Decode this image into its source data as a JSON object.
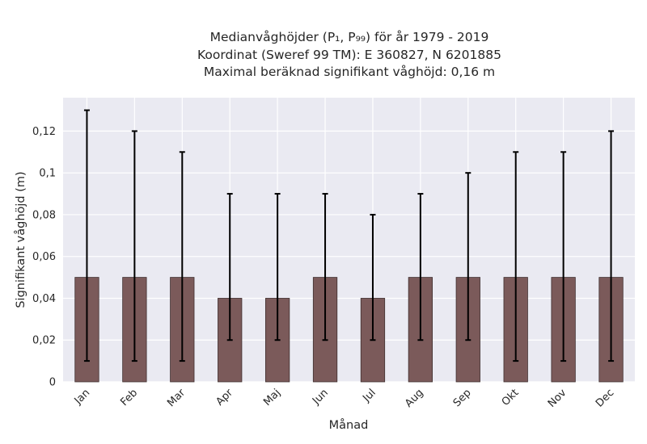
{
  "chart_data": {
    "type": "bar",
    "title_lines": [
      "Medianvåghöjder (P₁, P₉₉) för år 1979 - 2019",
      "Koordinat (Sweref 99 TM): E 360827, N 6201885",
      "Maximal beräknad signifikant våghöjd: 0,16 m"
    ],
    "xlabel": "Månad",
    "ylabel": "Signifikant våghöjd (m)",
    "categories": [
      "Jan",
      "Feb",
      "Mar",
      "Apr",
      "Maj",
      "Jun",
      "Jul",
      "Aug",
      "Sep",
      "Okt",
      "Nov",
      "Dec"
    ],
    "series": [
      {
        "values": [
          0.05,
          0.05,
          0.05,
          0.04,
          0.04,
          0.05,
          0.04,
          0.05,
          0.05,
          0.05,
          0.05,
          0.05
        ],
        "p1": [
          0.01,
          0.01,
          0.01,
          0.02,
          0.02,
          0.02,
          0.02,
          0.02,
          0.02,
          0.01,
          0.01,
          0.01
        ],
        "p99": [
          0.13,
          0.12,
          0.11,
          0.09,
          0.09,
          0.09,
          0.08,
          0.09,
          0.1,
          0.11,
          0.11,
          0.12
        ]
      }
    ],
    "ylim": [
      0,
      0.136
    ],
    "yticks": [
      0,
      0.02,
      0.04,
      0.06,
      0.08,
      0.1,
      0.12
    ],
    "ytick_labels": [
      "0",
      "0,02",
      "0,04",
      "0,06",
      "0,08",
      "0,1",
      "0,12"
    ],
    "grid": true,
    "colors": {
      "bar": "#7b5a5a",
      "bar_edge": "#3f2f2f",
      "errorbar": "#000000",
      "plot_bg": "#eaeaf2",
      "grid": "#ffffff"
    }
  }
}
